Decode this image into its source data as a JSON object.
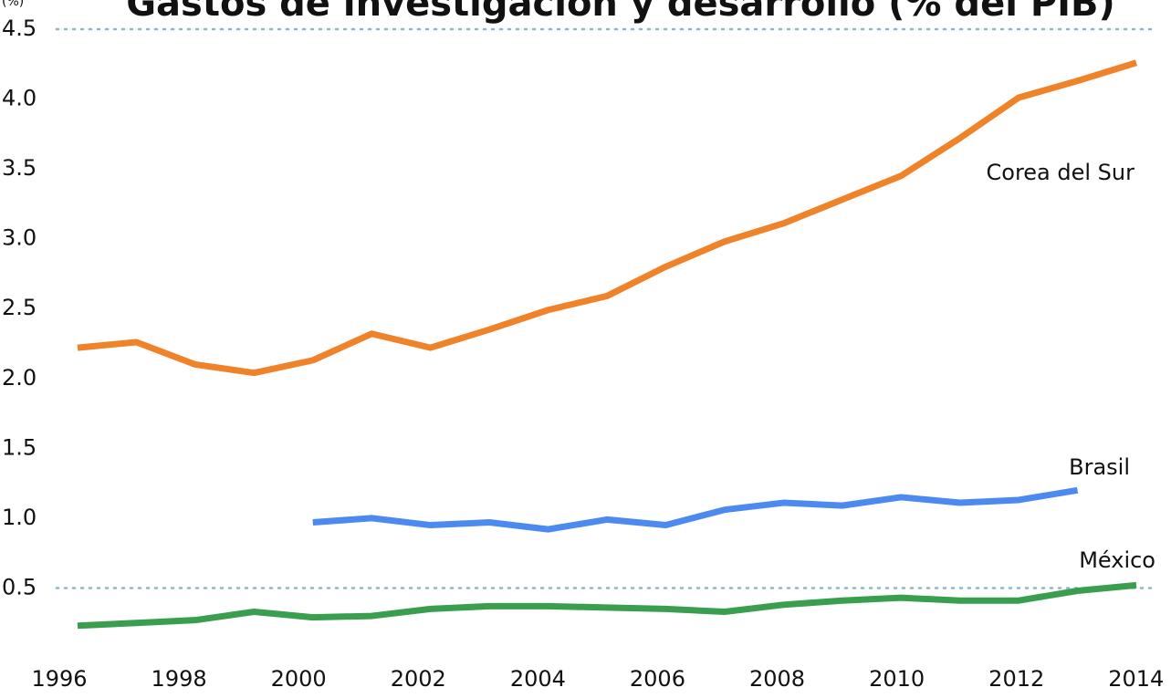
{
  "chart_data": {
    "type": "line",
    "title": "Gastos de investigación y desarrollo (% del PIB)",
    "y_label": "(%)",
    "x": [
      1996,
      1997,
      1998,
      1999,
      2000,
      2001,
      2002,
      2003,
      2004,
      2005,
      2006,
      2007,
      2008,
      2009,
      2010,
      2011,
      2012,
      2013,
      2014
    ],
    "series": [
      {
        "name": "Corea del Sur",
        "color": "#f0822a",
        "values": [
          2.22,
          2.26,
          2.1,
          2.04,
          2.13,
          2.32,
          2.22,
          2.35,
          2.49,
          2.59,
          2.8,
          2.98,
          3.11,
          3.28,
          3.45,
          3.72,
          4.01,
          4.13,
          4.26
        ]
      },
      {
        "name": "Brasil",
        "color": "#4d8af0",
        "values": [
          null,
          null,
          null,
          null,
          0.97,
          1.0,
          0.95,
          0.97,
          0.92,
          0.99,
          0.95,
          1.06,
          1.11,
          1.09,
          1.15,
          1.11,
          1.13,
          1.2,
          null
        ]
      },
      {
        "name": "México",
        "color": "#3a9e4f",
        "values": [
          0.23,
          0.25,
          0.27,
          0.33,
          0.29,
          0.3,
          0.35,
          0.37,
          0.37,
          0.36,
          0.35,
          0.33,
          0.38,
          0.41,
          0.43,
          0.41,
          0.41,
          0.48,
          0.52
        ]
      }
    ],
    "xlim": [
      1996,
      2014
    ],
    "xticks": [
      1996,
      1998,
      2000,
      2002,
      2004,
      2006,
      2008,
      2010,
      2012,
      2014
    ],
    "ylim": [
      0,
      4.5
    ],
    "yticks": [
      0.5,
      {
        "value": 1,
        "label": "1.0"
      },
      1.5,
      {
        "value": 2,
        "label": "2.0"
      },
      2.5,
      {
        "value": 3,
        "label": "3.0"
      },
      3.5,
      {
        "value": 4,
        "label": "4.0"
      },
      4.5
    ]
  }
}
